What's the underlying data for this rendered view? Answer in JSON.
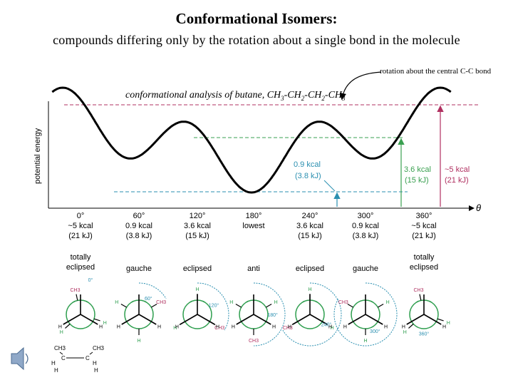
{
  "header": {
    "title": "Conformational Isomers:",
    "subtitle": "compounds differing only by the rotation about a single bond in the molecule",
    "rotation_note": "rotation about the central C-C bond"
  },
  "graph": {
    "heading_prefix": "conformational analysis of butane, CH",
    "formula_sub": "3",
    "formula_sub2": "2",
    "formula_mid": "-CH",
    "y_axis_label": "potential energy",
    "theta_label": "θ",
    "gauche_diff": [
      "0.9 kcal",
      "(3.8 kJ)"
    ],
    "eclipsed_diff": [
      "3.6 kcal",
      "(15 kJ)"
    ],
    "total_diff": [
      "~5 kcal",
      "(21 kJ)"
    ]
  },
  "conformations": [
    {
      "angle": "0°",
      "energy": "~5 kcal",
      "kj": "(21 kJ)",
      "name": [
        "totally",
        "eclipsed"
      ]
    },
    {
      "angle": "60°",
      "energy": "0.9 kcal",
      "kj": "(3.8 kJ)",
      "name": [
        "gauche"
      ]
    },
    {
      "angle": "120°",
      "energy": "3.6 kcal",
      "kj": "(15 kJ)",
      "name": [
        "eclipsed"
      ]
    },
    {
      "angle": "180°",
      "energy": "lowest",
      "kj": "",
      "name": [
        "anti"
      ]
    },
    {
      "angle": "240°",
      "energy": "3.6 kcal",
      "kj": "(15 kJ)",
      "name": [
        "eclipsed"
      ]
    },
    {
      "angle": "300°",
      "energy": "0.9 kcal",
      "kj": "(3.8 kJ)",
      "name": [
        "gauche"
      ]
    },
    {
      "angle": "360°",
      "energy": "~5 kcal",
      "kj": "(21 kJ)",
      "name": [
        "totally",
        "eclipsed"
      ]
    }
  ],
  "newman": {
    "ch3": "CH3",
    "h3c": "H3C",
    "h": "H",
    "angles": [
      "0°",
      "60°",
      "120°",
      "180°",
      "240°",
      "300°",
      "360°"
    ]
  },
  "molecule": {
    "ch3": "CH3",
    "c": "C",
    "h": "H"
  },
  "colors": {
    "curve": "#000000",
    "top_line": "#b03060",
    "mid_line": "#3aa050",
    "low_line": "#2a8fb0",
    "annotation_blue": "#2a8fb0",
    "newman_green": "#2e9e4e"
  }
}
